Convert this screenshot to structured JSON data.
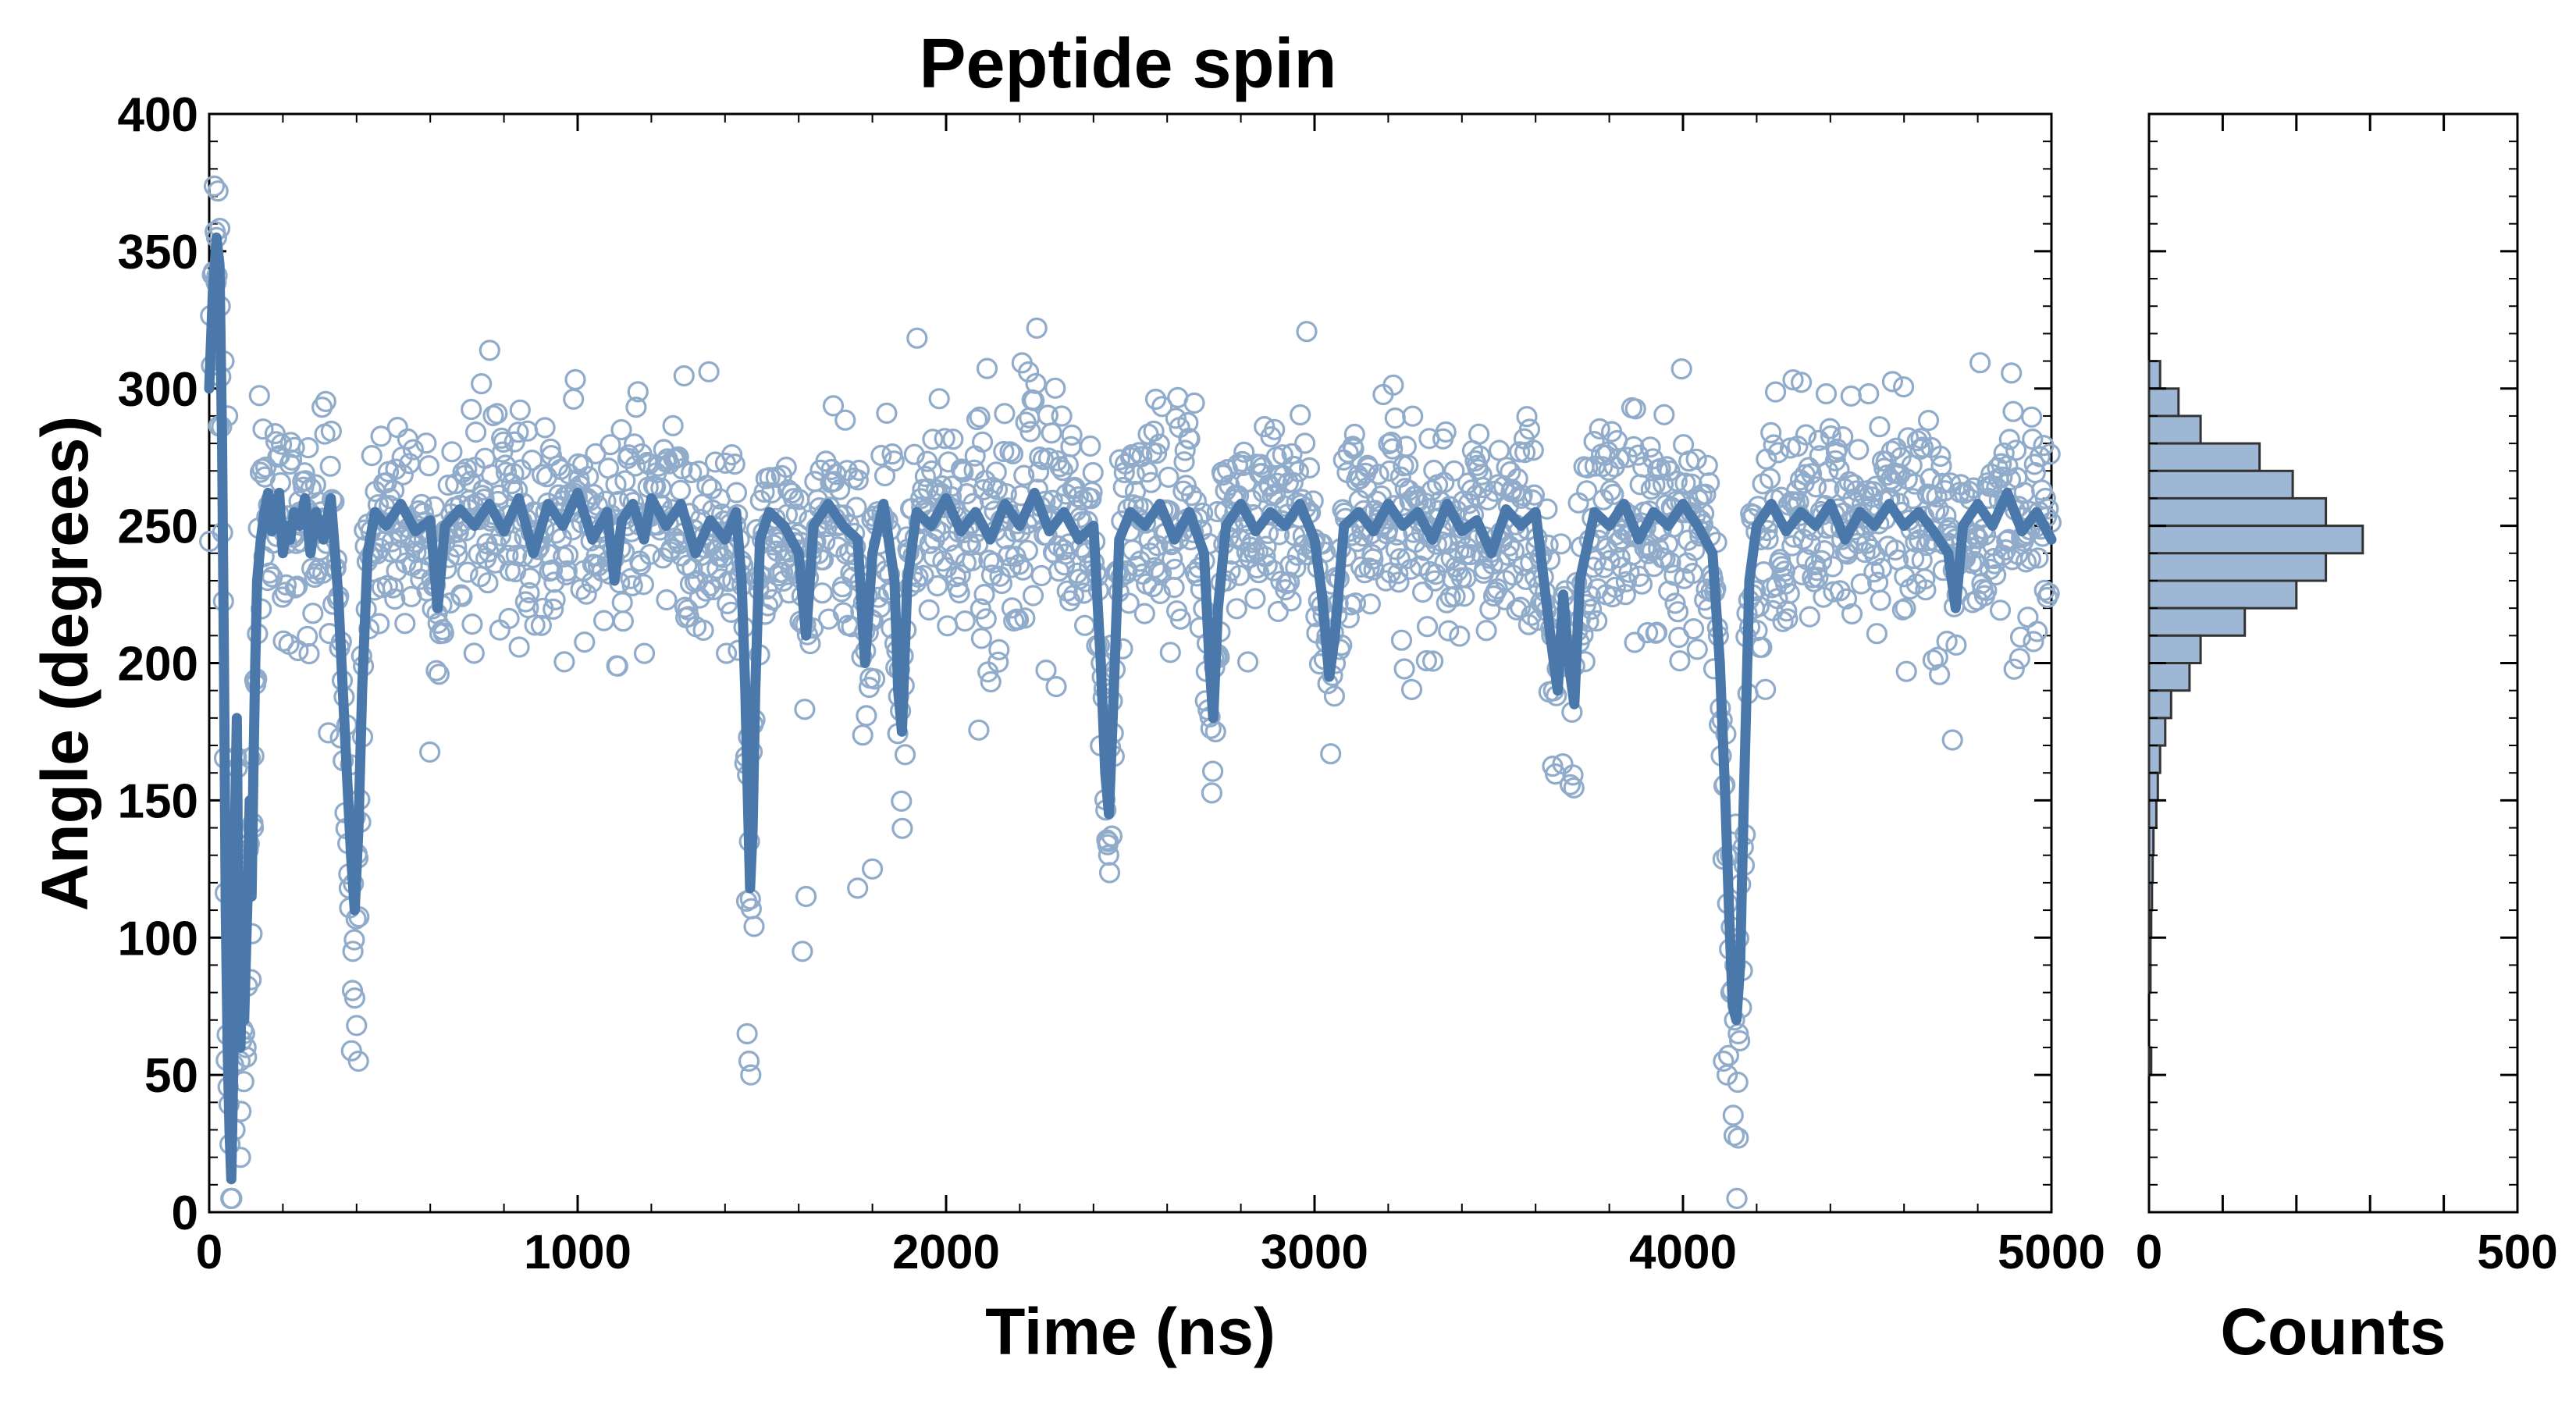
{
  "chart_data": {
    "type": "scatter",
    "title": "Peptide spin",
    "xlabel": "Time (ns)",
    "ylabel": "Angle (degrees)",
    "xlim": [
      0,
      5000
    ],
    "ylim": [
      0,
      400
    ],
    "xticks": [
      0,
      1000,
      2000,
      3000,
      4000,
      5000
    ],
    "yticks": [
      0,
      50,
      100,
      150,
      200,
      250,
      300,
      350,
      400
    ],
    "series_color": "#4a78ab",
    "marker_color": "#90acca",
    "baseline": 255,
    "noise_sd": 20,
    "sample_count": 2000,
    "series": [
      {
        "name": "smoothed",
        "style": "line",
        "points": [
          [
            0,
            300
          ],
          [
            10,
            335
          ],
          [
            20,
            355
          ],
          [
            28,
            345
          ],
          [
            35,
            280
          ],
          [
            40,
            200
          ],
          [
            45,
            110
          ],
          [
            50,
            60
          ],
          [
            55,
            30
          ],
          [
            60,
            12
          ],
          [
            65,
            50
          ],
          [
            70,
            140
          ],
          [
            75,
            180
          ],
          [
            80,
            90
          ],
          [
            85,
            60
          ],
          [
            90,
            100
          ],
          [
            95,
            70
          ],
          [
            100,
            95
          ],
          [
            105,
            120
          ],
          [
            110,
            150
          ],
          [
            115,
            115
          ],
          [
            120,
            160
          ],
          [
            125,
            200
          ],
          [
            130,
            230
          ],
          [
            140,
            245
          ],
          [
            150,
            255
          ],
          [
            160,
            262
          ],
          [
            170,
            248
          ],
          [
            180,
            258
          ],
          [
            190,
            262
          ],
          [
            200,
            240
          ],
          [
            210,
            250
          ],
          [
            220,
            245
          ],
          [
            230,
            255
          ],
          [
            245,
            250
          ],
          [
            260,
            260
          ],
          [
            275,
            240
          ],
          [
            290,
            255
          ],
          [
            310,
            245
          ],
          [
            330,
            260
          ],
          [
            350,
            225
          ],
          [
            370,
            170
          ],
          [
            385,
            130
          ],
          [
            395,
            110
          ],
          [
            405,
            140
          ],
          [
            415,
            190
          ],
          [
            430,
            240
          ],
          [
            450,
            255
          ],
          [
            480,
            250
          ],
          [
            520,
            258
          ],
          [
            560,
            248
          ],
          [
            600,
            252
          ],
          [
            620,
            220
          ],
          [
            640,
            250
          ],
          [
            680,
            256
          ],
          [
            720,
            250
          ],
          [
            760,
            258
          ],
          [
            800,
            248
          ],
          [
            840,
            260
          ],
          [
            880,
            240
          ],
          [
            920,
            258
          ],
          [
            960,
            250
          ],
          [
            1000,
            262
          ],
          [
            1040,
            245
          ],
          [
            1080,
            255
          ],
          [
            1100,
            230
          ],
          [
            1120,
            252
          ],
          [
            1150,
            258
          ],
          [
            1180,
            245
          ],
          [
            1200,
            260
          ],
          [
            1240,
            250
          ],
          [
            1280,
            258
          ],
          [
            1320,
            240
          ],
          [
            1360,
            252
          ],
          [
            1400,
            245
          ],
          [
            1430,
            255
          ],
          [
            1445,
            230
          ],
          [
            1455,
            190
          ],
          [
            1462,
            150
          ],
          [
            1468,
            118
          ],
          [
            1475,
            140
          ],
          [
            1482,
            190
          ],
          [
            1495,
            245
          ],
          [
            1520,
            255
          ],
          [
            1560,
            250
          ],
          [
            1600,
            240
          ],
          [
            1620,
            210
          ],
          [
            1640,
            250
          ],
          [
            1680,
            258
          ],
          [
            1720,
            250
          ],
          [
            1760,
            245
          ],
          [
            1780,
            200
          ],
          [
            1800,
            240
          ],
          [
            1830,
            258
          ],
          [
            1860,
            230
          ],
          [
            1870,
            190
          ],
          [
            1880,
            175
          ],
          [
            1895,
            230
          ],
          [
            1920,
            255
          ],
          [
            1960,
            250
          ],
          [
            2000,
            260
          ],
          [
            2040,
            248
          ],
          [
            2080,
            255
          ],
          [
            2120,
            245
          ],
          [
            2160,
            258
          ],
          [
            2200,
            250
          ],
          [
            2240,
            262
          ],
          [
            2280,
            248
          ],
          [
            2320,
            255
          ],
          [
            2360,
            245
          ],
          [
            2400,
            250
          ],
          [
            2420,
            200
          ],
          [
            2432,
            160
          ],
          [
            2442,
            145
          ],
          [
            2455,
            190
          ],
          [
            2470,
            245
          ],
          [
            2500,
            255
          ],
          [
            2540,
            250
          ],
          [
            2580,
            258
          ],
          [
            2620,
            245
          ],
          [
            2660,
            255
          ],
          [
            2700,
            240
          ],
          [
            2715,
            200
          ],
          [
            2725,
            180
          ],
          [
            2738,
            220
          ],
          [
            2760,
            250
          ],
          [
            2800,
            258
          ],
          [
            2840,
            248
          ],
          [
            2880,
            255
          ],
          [
            2920,
            250
          ],
          [
            2960,
            258
          ],
          [
            3000,
            245
          ],
          [
            3020,
            225
          ],
          [
            3040,
            195
          ],
          [
            3055,
            210
          ],
          [
            3080,
            250
          ],
          [
            3120,
            255
          ],
          [
            3160,
            248
          ],
          [
            3200,
            258
          ],
          [
            3240,
            250
          ],
          [
            3280,
            255
          ],
          [
            3320,
            245
          ],
          [
            3360,
            258
          ],
          [
            3400,
            248
          ],
          [
            3440,
            252
          ],
          [
            3480,
            240
          ],
          [
            3520,
            256
          ],
          [
            3560,
            250
          ],
          [
            3600,
            255
          ],
          [
            3640,
            210
          ],
          [
            3660,
            190
          ],
          [
            3675,
            225
          ],
          [
            3690,
            200
          ],
          [
            3705,
            185
          ],
          [
            3720,
            230
          ],
          [
            3760,
            255
          ],
          [
            3800,
            250
          ],
          [
            3840,
            258
          ],
          [
            3880,
            245
          ],
          [
            3920,
            255
          ],
          [
            3960,
            250
          ],
          [
            4000,
            258
          ],
          [
            4040,
            250
          ],
          [
            4080,
            240
          ],
          [
            4100,
            200
          ],
          [
            4115,
            150
          ],
          [
            4125,
            110
          ],
          [
            4135,
            75
          ],
          [
            4145,
            70
          ],
          [
            4155,
            90
          ],
          [
            4165,
            150
          ],
          [
            4180,
            230
          ],
          [
            4200,
            250
          ],
          [
            4240,
            258
          ],
          [
            4280,
            248
          ],
          [
            4320,
            255
          ],
          [
            4360,
            250
          ],
          [
            4400,
            258
          ],
          [
            4440,
            245
          ],
          [
            4480,
            255
          ],
          [
            4520,
            250
          ],
          [
            4560,
            258
          ],
          [
            4600,
            250
          ],
          [
            4640,
            255
          ],
          [
            4680,
            248
          ],
          [
            4720,
            240
          ],
          [
            4740,
            220
          ],
          [
            4760,
            250
          ],
          [
            4800,
            258
          ],
          [
            4840,
            250
          ],
          [
            4880,
            262
          ],
          [
            4920,
            248
          ],
          [
            4960,
            255
          ],
          [
            5000,
            245
          ]
        ]
      },
      {
        "name": "samples",
        "style": "open-circle markers",
        "outliers": [
          [
            20,
            355
          ],
          [
            30,
            330
          ],
          [
            40,
            310
          ],
          [
            50,
            290
          ],
          [
            70,
            30
          ],
          [
            85,
            20
          ],
          [
            100,
            60
          ],
          [
            120,
            140
          ],
          [
            380,
            118
          ],
          [
            390,
            95
          ],
          [
            395,
            78
          ],
          [
            400,
            68
          ],
          [
            405,
            55
          ],
          [
            1460,
            65
          ],
          [
            1465,
            55
          ],
          [
            1470,
            50
          ],
          [
            1610,
            95
          ],
          [
            1620,
            115
          ],
          [
            1760,
            118
          ],
          [
            1800,
            125
          ],
          [
            2440,
            135
          ],
          [
            2450,
            137
          ],
          [
            4110,
            55
          ],
          [
            4120,
            50
          ],
          [
            4130,
            80
          ],
          [
            4140,
            70
          ],
          [
            4150,
            27
          ],
          [
            4150,
            65
          ]
        ]
      }
    ]
  },
  "histogram": {
    "xlabel": "Counts",
    "xlim": [
      0,
      500
    ],
    "xticks": [
      0,
      500
    ],
    "bar_color": "#9db7d4",
    "bins": [
      {
        "lo": 300,
        "hi": 310,
        "count": 15
      },
      {
        "lo": 290,
        "hi": 300,
        "count": 40
      },
      {
        "lo": 280,
        "hi": 290,
        "count": 70
      },
      {
        "lo": 270,
        "hi": 280,
        "count": 150
      },
      {
        "lo": 260,
        "hi": 270,
        "count": 195
      },
      {
        "lo": 250,
        "hi": 260,
        "count": 240
      },
      {
        "lo": 240,
        "hi": 250,
        "count": 290
      },
      {
        "lo": 230,
        "hi": 240,
        "count": 240
      },
      {
        "lo": 220,
        "hi": 230,
        "count": 200
      },
      {
        "lo": 210,
        "hi": 220,
        "count": 130
      },
      {
        "lo": 200,
        "hi": 210,
        "count": 70
      },
      {
        "lo": 190,
        "hi": 200,
        "count": 55
      },
      {
        "lo": 180,
        "hi": 190,
        "count": 30
      },
      {
        "lo": 170,
        "hi": 180,
        "count": 22
      },
      {
        "lo": 160,
        "hi": 170,
        "count": 15
      },
      {
        "lo": 150,
        "hi": 160,
        "count": 12
      },
      {
        "lo": 140,
        "hi": 150,
        "count": 10
      },
      {
        "lo": 130,
        "hi": 140,
        "count": 6
      },
      {
        "lo": 120,
        "hi": 130,
        "count": 5
      },
      {
        "lo": 110,
        "hi": 120,
        "count": 4
      },
      {
        "lo": 100,
        "hi": 110,
        "count": 3
      },
      {
        "lo": 90,
        "hi": 100,
        "count": 2
      },
      {
        "lo": 80,
        "hi": 90,
        "count": 2
      },
      {
        "lo": 50,
        "hi": 60,
        "count": 3
      }
    ]
  }
}
